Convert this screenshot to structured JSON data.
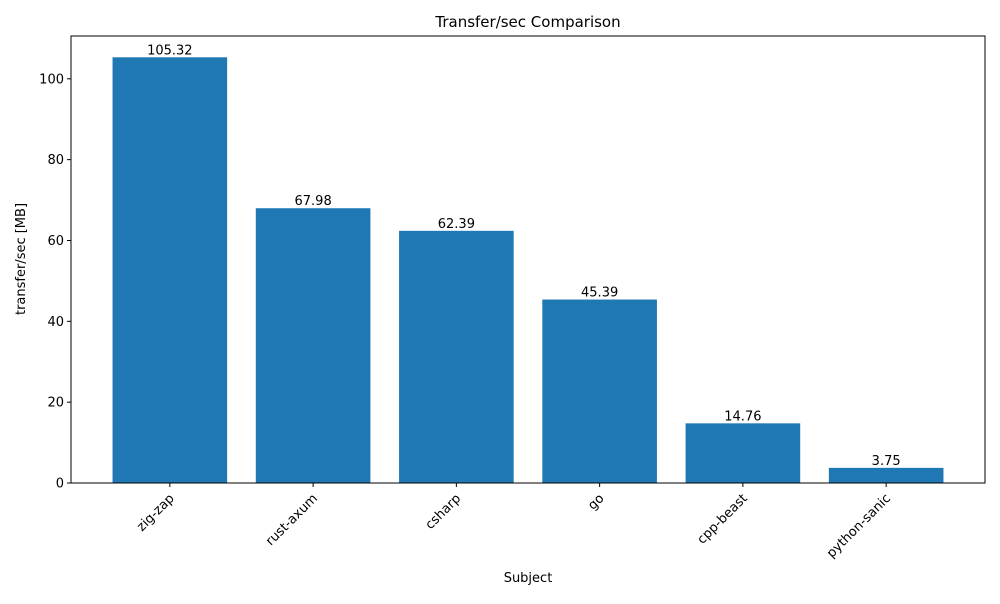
{
  "chart_data": {
    "type": "bar",
    "title": "Transfer/sec Comparison",
    "xlabel": "Subject",
    "ylabel": "transfer/sec [MB]",
    "categories": [
      "zig-zap",
      "rust-axum",
      "csharp",
      "go",
      "cpp-beast",
      "python-sanic"
    ],
    "values": [
      105.32,
      67.98,
      62.39,
      45.39,
      14.76,
      3.75
    ],
    "data_labels": [
      "105.32",
      "67.98",
      "62.39",
      "45.39",
      "14.76",
      "3.75"
    ],
    "yticks": [
      0,
      20,
      40,
      60,
      80,
      100
    ],
    "ylim": [
      0,
      110.59
    ],
    "xtick_rotation": 45,
    "grid": false,
    "bar_color": "#1f77b4"
  }
}
